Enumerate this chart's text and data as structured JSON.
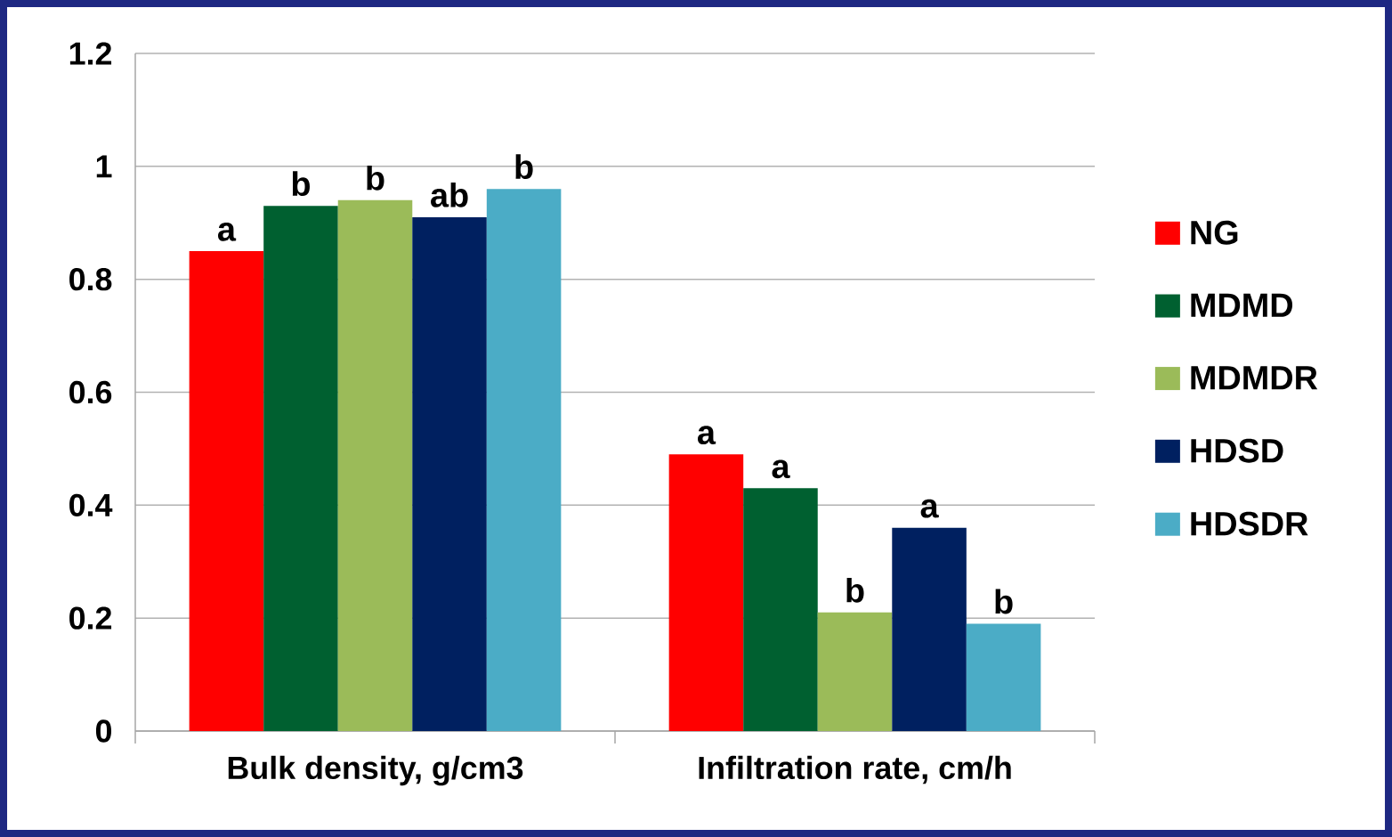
{
  "chart_data": {
    "type": "bar",
    "categories": [
      "Bulk density, g/cm3",
      "Infiltration rate, cm/h"
    ],
    "series": [
      {
        "name": "NG",
        "color": "#ff0000",
        "values": [
          0.85,
          0.49
        ],
        "value_labels": [
          "a",
          "a"
        ]
      },
      {
        "name": "MDMD",
        "color": "#006030",
        "values": [
          0.93,
          0.43
        ],
        "value_labels": [
          "b",
          "a"
        ]
      },
      {
        "name": "MDMDR",
        "color": "#9bbb59",
        "values": [
          0.94,
          0.21
        ],
        "value_labels": [
          "b",
          "b"
        ]
      },
      {
        "name": "HDSD",
        "color": "#002060",
        "values": [
          0.91,
          0.36
        ],
        "value_labels": [
          "ab",
          "a"
        ]
      },
      {
        "name": "HDSDR",
        "color": "#4bacc6",
        "values": [
          0.96,
          0.19
        ],
        "value_labels": [
          "b",
          "b"
        ]
      }
    ],
    "ylim": [
      0,
      1.2
    ],
    "yticks": [
      0,
      0.2,
      0.4,
      0.6,
      0.8,
      1,
      1.2
    ],
    "grid": "y",
    "legend": "right"
  }
}
